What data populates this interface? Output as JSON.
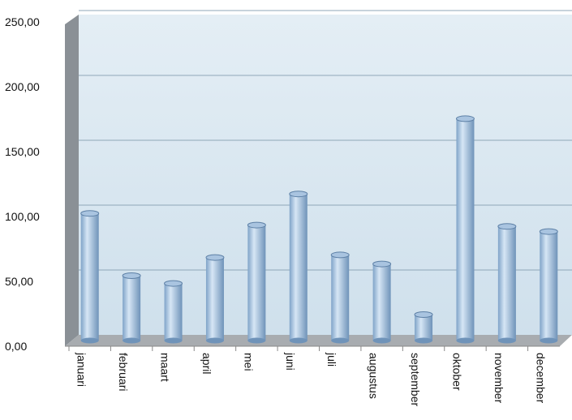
{
  "chart_data": {
    "type": "bar",
    "categories": [
      "januari",
      "februari",
      "maart",
      "april",
      "mei",
      "juni",
      "juli",
      "augustus",
      "september",
      "oktober",
      "november",
      "december"
    ],
    "values": [
      98,
      50,
      44,
      64,
      89,
      113,
      66,
      59,
      20,
      171,
      88,
      84
    ],
    "color": "#a9c4e0",
    "ylim": [
      0,
      250
    ],
    "yticks": [
      {
        "value": 0,
        "label": "0,00"
      },
      {
        "value": 50,
        "label": "50,00"
      },
      {
        "value": 100,
        "label": "100,00"
      },
      {
        "value": 150,
        "label": "150,00"
      },
      {
        "value": 200,
        "label": "200,00"
      },
      {
        "value": 250,
        "label": "250,00"
      }
    ],
    "grid": true
  }
}
